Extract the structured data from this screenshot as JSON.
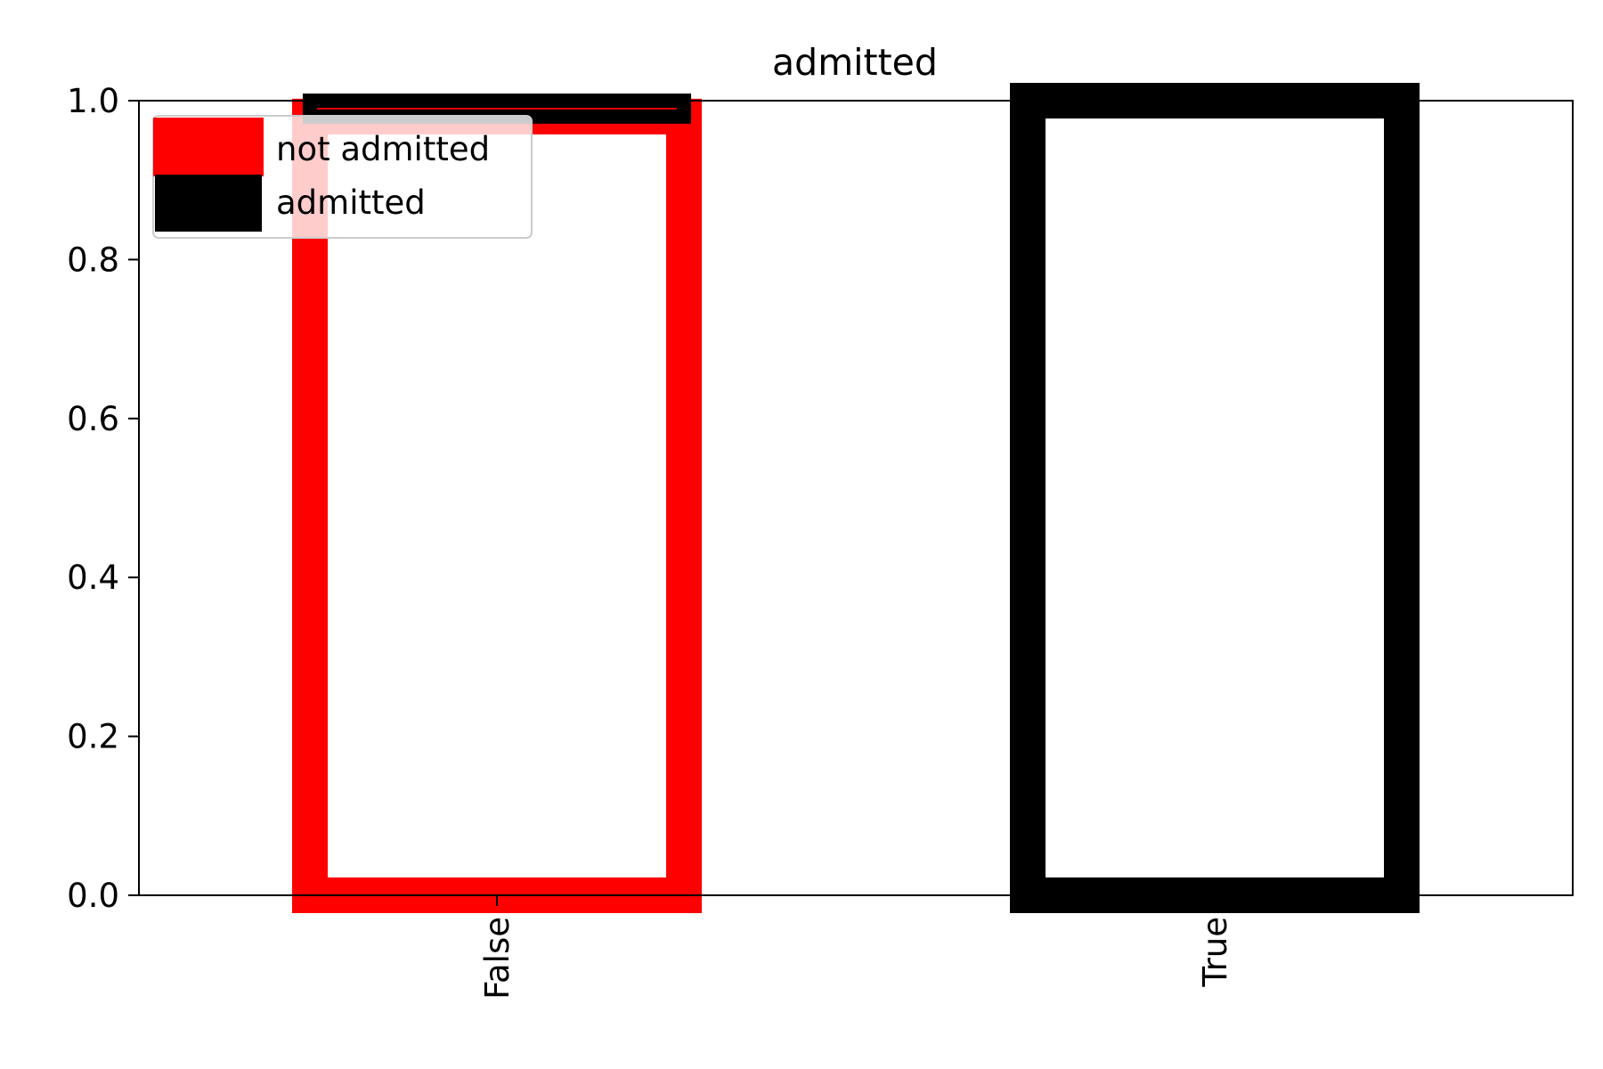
{
  "chart_data": {
    "type": "bar",
    "title": "admitted",
    "xlabel": "",
    "ylabel": "",
    "categories": [
      "False",
      "True"
    ],
    "ylim": [
      0,
      1.0
    ],
    "yticks": [
      "0.0",
      "0.2",
      "0.4",
      "0.6",
      "0.8",
      "1.0"
    ],
    "grid": false,
    "legend_position": "top-left",
    "stacked": true,
    "series": [
      {
        "name": "not admitted",
        "color": "#ff0000",
        "values": [
          0.98,
          0.0
        ]
      },
      {
        "name": "admitted",
        "color": "#000000",
        "values": [
          0.02,
          1.0
        ]
      }
    ]
  }
}
